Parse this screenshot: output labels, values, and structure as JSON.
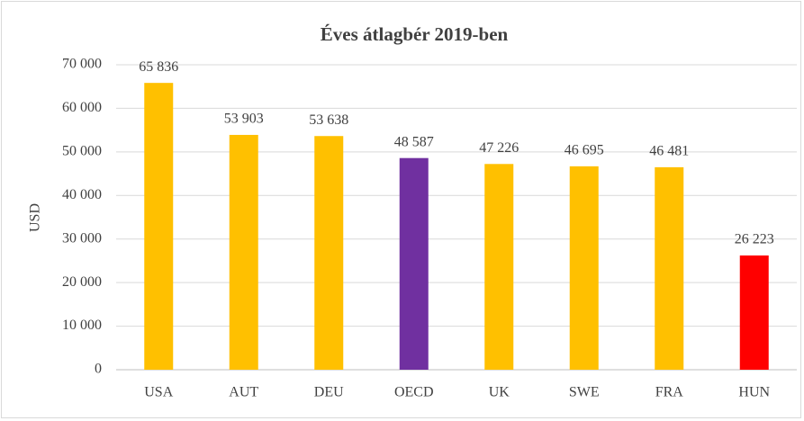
{
  "chart_data": {
    "type": "bar",
    "title": "Éves átlagbér 2019-ben",
    "y_label": "USD",
    "categories": [
      "USA",
      "AUT",
      "DEU",
      "OECD",
      "UK",
      "SWE",
      "FRA",
      "HUN"
    ],
    "values": [
      65836,
      53903,
      53638,
      48587,
      47226,
      46695,
      46481,
      26223
    ],
    "value_labels": [
      "65 836",
      "53 903",
      "53 638",
      "48 587",
      "47 226",
      "46 695",
      "46 481",
      "26 223"
    ],
    "colors": [
      "#FFC000",
      "#FFC000",
      "#FFC000",
      "#7030A0",
      "#FFC000",
      "#FFC000",
      "#FFC000",
      "#FF0000"
    ],
    "ylim": [
      0,
      70000
    ],
    "yticks": [
      0,
      {
        "value": 10000,
        "label": "10 000"
      },
      {
        "value": 20000,
        "label": "20 000"
      },
      {
        "value": 30000,
        "label": "30 000"
      },
      {
        "value": 40000,
        "label": "40 000"
      },
      {
        "value": 50000,
        "label": "50 000"
      },
      {
        "value": 60000,
        "label": "60 000"
      },
      {
        "value": 70000,
        "label": "70 000"
      }
    ],
    "grid": true
  }
}
